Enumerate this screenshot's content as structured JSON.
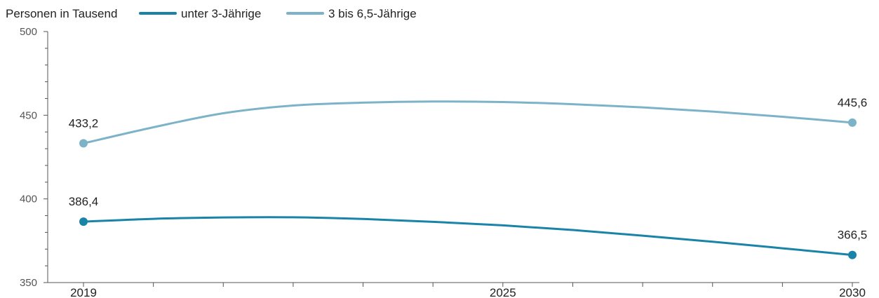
{
  "chart_data": {
    "type": "line",
    "ylabel": "Personen in Tausend",
    "xlabel": "",
    "x": [
      2019,
      2020,
      2021,
      2022,
      2023,
      2024,
      2025,
      2026,
      2027,
      2028,
      2029,
      2030
    ],
    "x_tick_labels": [
      "2019",
      "2025",
      "2030"
    ],
    "x_tick_values": [
      2019,
      2025,
      2030
    ],
    "ylim": [
      350,
      500
    ],
    "y_ticks": [
      350,
      400,
      450,
      500
    ],
    "y_tick_labels": [
      "350",
      "400",
      "450",
      "500"
    ],
    "grid": false,
    "legend_position": "top-left",
    "series": [
      {
        "name": "unter 3-Jährige",
        "color": "#1a84a8",
        "values": [
          386.4,
          388.1,
          388.9,
          389.0,
          388.0,
          386.3,
          384.2,
          381.4,
          378.0,
          374.4,
          370.5,
          366.5
        ],
        "labels": [
          {
            "index": 0,
            "text": "386,4"
          },
          {
            "index": 11,
            "text": "366,5"
          }
        ]
      },
      {
        "name": "3 bis 6,5-Jährige",
        "color": "#7db3c8",
        "values": [
          433.2,
          442.8,
          451.2,
          455.8,
          457.5,
          458.2,
          457.9,
          456.6,
          454.7,
          452.2,
          449.1,
          445.6
        ],
        "labels": [
          {
            "index": 0,
            "text": "433,2"
          },
          {
            "index": 11,
            "text": "445,6"
          }
        ]
      }
    ]
  }
}
